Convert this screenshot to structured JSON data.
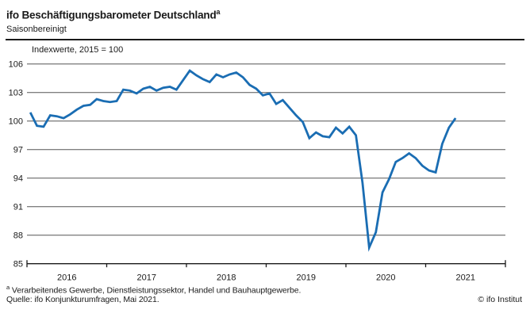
{
  "header": {
    "title": "ifo Beschäftigungsbarometer Deutschland",
    "title_superscript": "a",
    "subtitle": "Saisonbereinigt"
  },
  "chart_note": "Indexwerte, 2015 = 100",
  "chart_data": {
    "type": "line",
    "title": "ifo Beschäftigungsbarometer Deutschland",
    "subtitle": "Saisonbereinigt",
    "unit_note": "Indexwerte, 2015 = 100",
    "frequency": "monthly",
    "x_start": "2016-01",
    "x_end": "2021-05",
    "years": [
      "2016",
      "2017",
      "2018",
      "2019",
      "2020",
      "2021"
    ],
    "values": [
      100.9,
      99.5,
      99.4,
      100.6,
      100.5,
      100.3,
      100.7,
      101.2,
      101.6,
      101.7,
      102.3,
      102.1,
      102.0,
      102.1,
      103.3,
      103.2,
      102.9,
      103.4,
      103.6,
      103.2,
      103.5,
      103.6,
      103.3,
      104.3,
      105.3,
      104.8,
      104.4,
      104.1,
      104.9,
      104.6,
      104.9,
      105.1,
      104.6,
      103.8,
      103.4,
      102.7,
      102.9,
      101.8,
      102.2,
      101.4,
      100.6,
      99.9,
      98.2,
      98.8,
      98.4,
      98.3,
      99.3,
      98.7,
      99.4,
      98.5,
      93.5,
      86.7,
      88.3,
      92.5,
      93.9,
      95.7,
      96.1,
      96.6,
      96.1,
      95.3,
      94.8,
      94.6,
      97.6,
      99.3,
      100.3
    ],
    "ylim": [
      85,
      106
    ],
    "yticks": [
      85,
      88,
      91,
      94,
      97,
      100,
      103,
      106
    ],
    "grid": true,
    "legend": "none",
    "line_color": "#1a6db3",
    "grid_color": "#555555",
    "axis_color": "#1a1a1a"
  },
  "footer": {
    "footnote_marker": "a",
    "footnote_text": " Verarbeitendes Gewerbe, Dienstleistungssektor, Handel und Bauhauptgewerbe.",
    "source": "Quelle: ifo Konjunkturumfragen, Mai 2021.",
    "copyright": "© ifo Institut"
  }
}
